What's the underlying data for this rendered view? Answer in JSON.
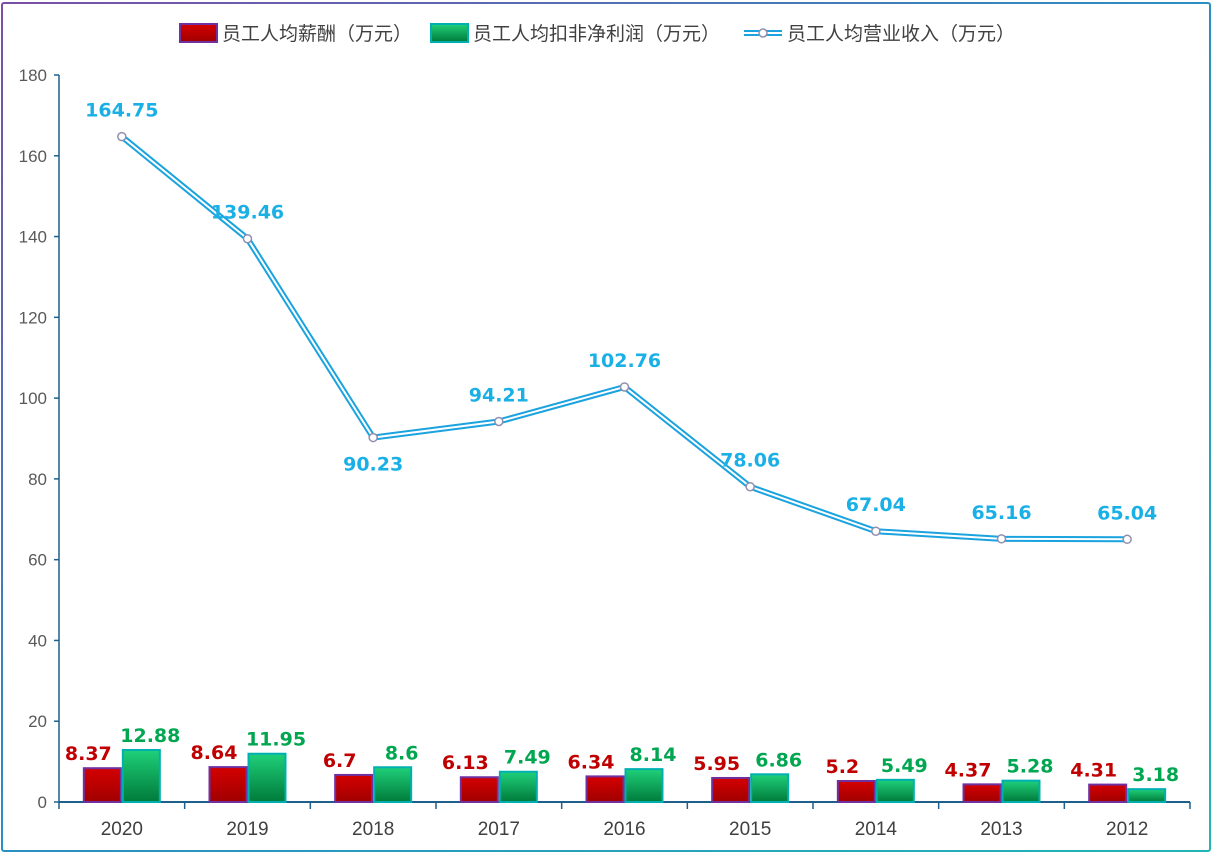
{
  "colors": {
    "salary": "#c00000",
    "salary_border": "#7030a0",
    "profit": "#00b050",
    "profit_border": "#00b0b0",
    "revenue": "#1aa3df",
    "salary_label": "#c00000",
    "profit_label": "#00a650",
    "revenue_label": "#1ab0e6",
    "axis": "#1f5f8b",
    "tick_label": "#595959"
  },
  "legend": {
    "salary": "员工人均薪酬（万元）",
    "profit": "员工人均扣非净利润（万元）",
    "revenue": "员工人均营业收入（万元）"
  },
  "chart_data": {
    "type": "bar+line",
    "categories": [
      "2020",
      "2019",
      "2018",
      "2017",
      "2016",
      "2015",
      "2014",
      "2013",
      "2012"
    ],
    "y_ticks": [
      "0",
      "20",
      "40",
      "60",
      "80",
      "100",
      "120",
      "140",
      "160",
      "180"
    ],
    "ylim": [
      0,
      180
    ],
    "grid": false,
    "legend_position": "top-center",
    "series": [
      {
        "name": "员工人均薪酬（万元）",
        "type": "bar",
        "values": [
          8.37,
          8.64,
          6.7,
          6.13,
          6.34,
          5.95,
          5.2,
          4.37,
          4.31
        ],
        "labels": [
          "8.37",
          "8.64",
          "6.7",
          "6.13",
          "6.34",
          "5.95",
          "5.2",
          "4.37",
          "4.31"
        ]
      },
      {
        "name": "员工人均扣非净利润（万元）",
        "type": "bar",
        "values": [
          12.88,
          11.95,
          8.6,
          7.49,
          8.14,
          6.86,
          5.49,
          5.28,
          3.18
        ],
        "labels": [
          "12.88",
          "11.95",
          "8.6",
          "7.49",
          "8.14",
          "6.86",
          "5.49",
          "5.28",
          "3.18"
        ]
      },
      {
        "name": "员工人均营业收入（万元）",
        "type": "line",
        "values": [
          164.75,
          139.46,
          90.23,
          94.21,
          102.76,
          78.06,
          67.04,
          65.16,
          65.04
        ],
        "labels": [
          "164.75",
          "139.46",
          "90.23",
          "94.21",
          "102.76",
          "78.06",
          "67.04",
          "65.16",
          "65.04"
        ]
      }
    ]
  }
}
